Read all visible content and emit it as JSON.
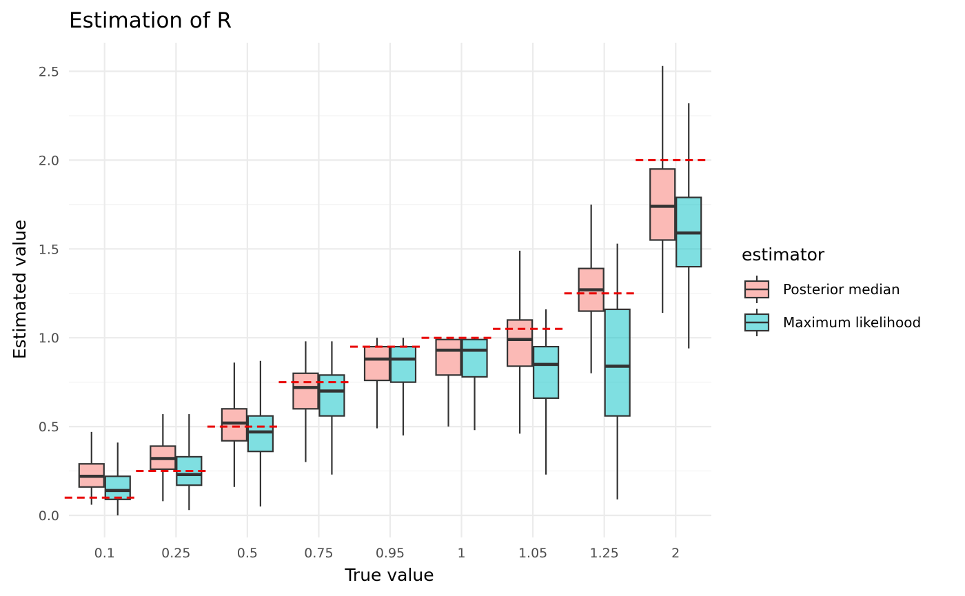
{
  "chart_data": {
    "type": "boxplot",
    "title": "Estimation of R",
    "xlabel": "True value",
    "ylabel": "Estimated value",
    "ylim": [
      -0.1,
      2.65
    ],
    "y_ticks": [
      0.0,
      0.5,
      1.0,
      1.5,
      2.0,
      2.5
    ],
    "y_tick_labels": [
      "0.0",
      "0.5",
      "1.0",
      "1.5",
      "2.0",
      "2.5"
    ],
    "categories": [
      "0.1",
      "0.25",
      "0.5",
      "0.75",
      "0.95",
      "1",
      "1.05",
      "1.25",
      "2"
    ],
    "true_values": [
      0.1,
      0.25,
      0.5,
      0.75,
      0.95,
      1.0,
      1.05,
      1.25,
      2.0
    ],
    "true_value_color": "#e80000",
    "grid": true,
    "legend": {
      "title": "estimator",
      "position": "right"
    },
    "series": [
      {
        "name": "Posterior median",
        "color": "#f8766d",
        "boxes": [
          {
            "min": 0.06,
            "q1": 0.16,
            "median": 0.22,
            "q3": 0.29,
            "max": 0.47
          },
          {
            "min": 0.08,
            "q1": 0.26,
            "median": 0.32,
            "q3": 0.39,
            "max": 0.57
          },
          {
            "min": 0.16,
            "q1": 0.42,
            "median": 0.52,
            "q3": 0.6,
            "max": 0.86
          },
          {
            "min": 0.3,
            "q1": 0.6,
            "median": 0.72,
            "q3": 0.8,
            "max": 0.98
          },
          {
            "min": 0.49,
            "q1": 0.76,
            "median": 0.88,
            "q3": 0.95,
            "max": 1.0
          },
          {
            "min": 0.5,
            "q1": 0.79,
            "median": 0.93,
            "q3": 0.99,
            "max": 1.0
          },
          {
            "min": 0.46,
            "q1": 0.84,
            "median": 0.99,
            "q3": 1.1,
            "max": 1.49
          },
          {
            "min": 0.8,
            "q1": 1.15,
            "median": 1.27,
            "q3": 1.39,
            "max": 1.75
          },
          {
            "min": 1.14,
            "q1": 1.55,
            "median": 1.74,
            "q3": 1.95,
            "max": 2.53
          }
        ]
      },
      {
        "name": "Maximum likelihood",
        "color": "#00bfc4",
        "boxes": [
          {
            "min": 0.0,
            "q1": 0.09,
            "median": 0.14,
            "q3": 0.22,
            "max": 0.41
          },
          {
            "min": 0.03,
            "q1": 0.17,
            "median": 0.23,
            "q3": 0.33,
            "max": 0.57
          },
          {
            "min": 0.05,
            "q1": 0.36,
            "median": 0.47,
            "q3": 0.56,
            "max": 0.87
          },
          {
            "min": 0.23,
            "q1": 0.56,
            "median": 0.7,
            "q3": 0.79,
            "max": 0.98
          },
          {
            "min": 0.45,
            "q1": 0.75,
            "median": 0.88,
            "q3": 0.95,
            "max": 1.0
          },
          {
            "min": 0.48,
            "q1": 0.78,
            "median": 0.93,
            "q3": 0.99,
            "max": 1.0
          },
          {
            "min": 0.23,
            "q1": 0.66,
            "median": 0.85,
            "q3": 0.95,
            "max": 1.16
          },
          {
            "min": 0.09,
            "q1": 0.56,
            "median": 0.84,
            "q3": 1.16,
            "max": 1.53
          },
          {
            "min": 0.94,
            "q1": 1.4,
            "median": 1.59,
            "q3": 1.79,
            "max": 2.32
          }
        ]
      }
    ]
  }
}
